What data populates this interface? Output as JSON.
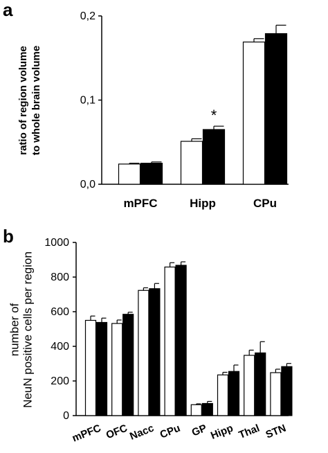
{
  "chart_data": [
    {
      "panel_label": "a",
      "type": "bar",
      "categories": [
        "mPFC",
        "Hipp",
        "CPu"
      ],
      "series": [
        {
          "color": "#ffffff",
          "values": [
            0.024,
            0.051,
            0.169
          ],
          "errors": [
            0.001,
            0.003,
            0.004
          ]
        },
        {
          "color": "#000000",
          "values": [
            0.025,
            0.065,
            0.179
          ],
          "errors": [
            0.0015,
            0.004,
            0.01
          ]
        }
      ],
      "ylabel_lines": [
        "ratio of region volume",
        "to whole brain volume"
      ],
      "ylim": [
        0,
        0.2
      ],
      "yticks": [
        "0,0",
        "0,1",
        "0,2"
      ],
      "annotations": [
        {
          "text": "*",
          "category": "Hipp",
          "series": 1
        }
      ],
      "grid": false,
      "legend": "none"
    },
    {
      "panel_label": "b",
      "type": "bar",
      "categories": [
        "mPFC",
        "OFC",
        "Nacc",
        "CPu",
        "GP",
        "Hipp",
        "Thal",
        "STN"
      ],
      "series": [
        {
          "color": "#ffffff",
          "values": [
            550,
            532,
            723,
            858,
            63,
            235,
            348,
            248
          ],
          "errors": [
            25,
            20,
            15,
            25,
            5,
            15,
            30,
            20
          ]
        },
        {
          "color": "#000000",
          "values": [
            538,
            585,
            733,
            868,
            70,
            255,
            362,
            283
          ],
          "errors": [
            25,
            12,
            30,
            20,
            12,
            37,
            65,
            18
          ]
        }
      ],
      "ylabel_lines": [
        "number of",
        "NeuN positive cells per region"
      ],
      "ylim": [
        0,
        1000
      ],
      "yticks": [
        "0",
        "200",
        "400",
        "600",
        "800",
        "1000"
      ],
      "grid": false,
      "legend": "none"
    }
  ]
}
